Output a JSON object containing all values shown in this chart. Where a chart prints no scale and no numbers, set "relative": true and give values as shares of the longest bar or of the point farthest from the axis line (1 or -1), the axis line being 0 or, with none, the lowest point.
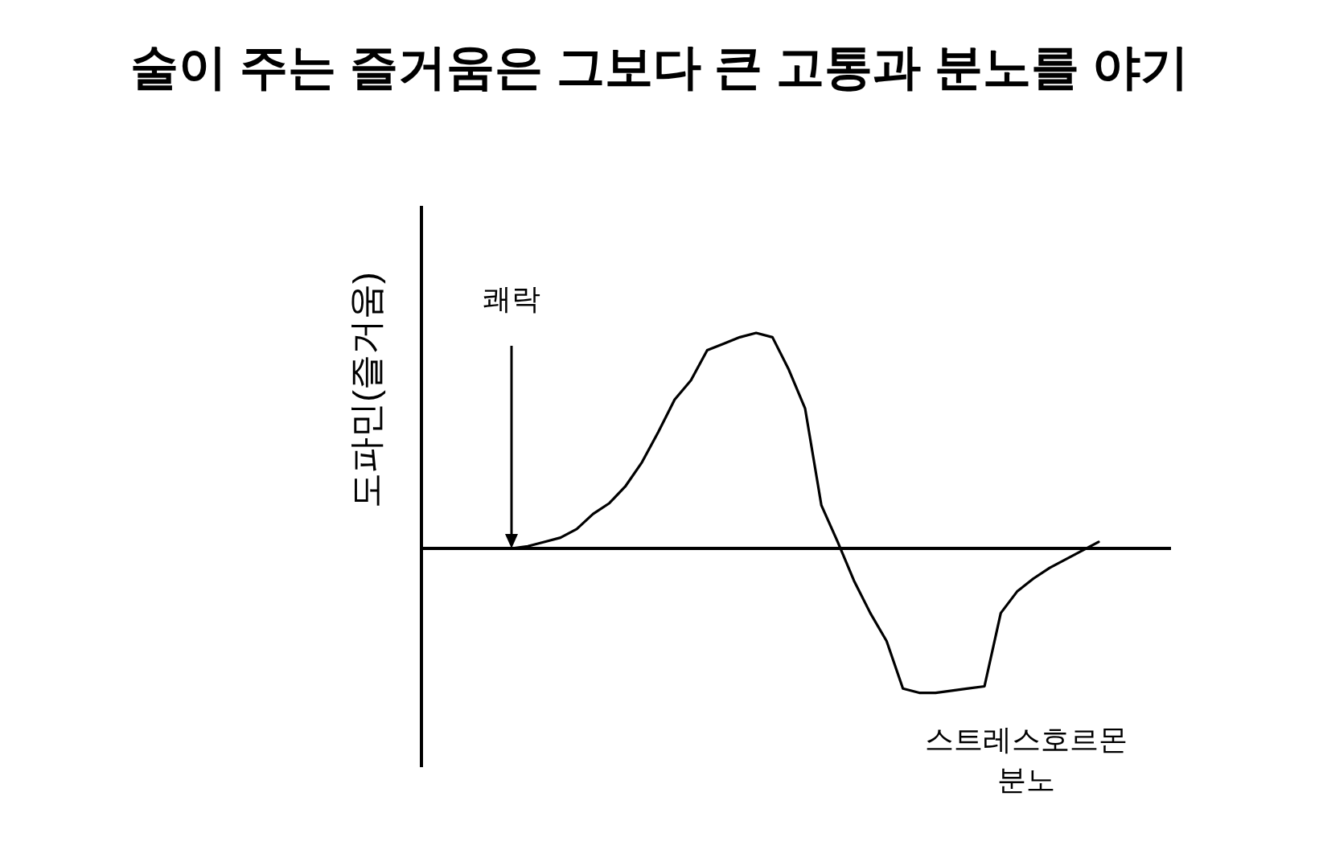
{
  "chart_data": {
    "type": "line",
    "relative": true,
    "title": "술이 주는 즐거움은 그보다 큰 고통과 분노를 야기",
    "ylabel": "도파민(즐거움)",
    "categories": [
      null,
      null,
      null,
      null,
      null,
      null,
      null,
      null,
      null,
      null,
      null,
      null,
      null,
      null,
      null,
      null,
      null,
      null,
      null,
      null,
      null,
      null,
      null,
      null,
      null,
      null,
      null,
      null,
      null,
      null,
      null,
      null,
      null,
      null,
      null,
      null,
      null
    ],
    "series": [
      {
        "color": "#000000",
        "values": [
          0,
          0.01,
          0.03,
          0.05,
          0.09,
          0.16,
          0.21,
          0.29,
          0.4,
          0.54,
          0.69,
          0.78,
          0.92,
          0.95,
          0.98,
          1,
          0.98,
          0.83,
          0.65,
          0.2,
          0.03,
          -0.15,
          -0.3,
          -0.43,
          -0.65,
          -0.67,
          -0.67,
          -0.66,
          -0.65,
          -0.64,
          -0.3,
          -0.2,
          -0.14,
          -0.09,
          -0.05,
          -0.01,
          0.03
        ]
      }
    ],
    "annotations": [
      "쾌락",
      "스트레스호르몬\n분노"
    ]
  }
}
